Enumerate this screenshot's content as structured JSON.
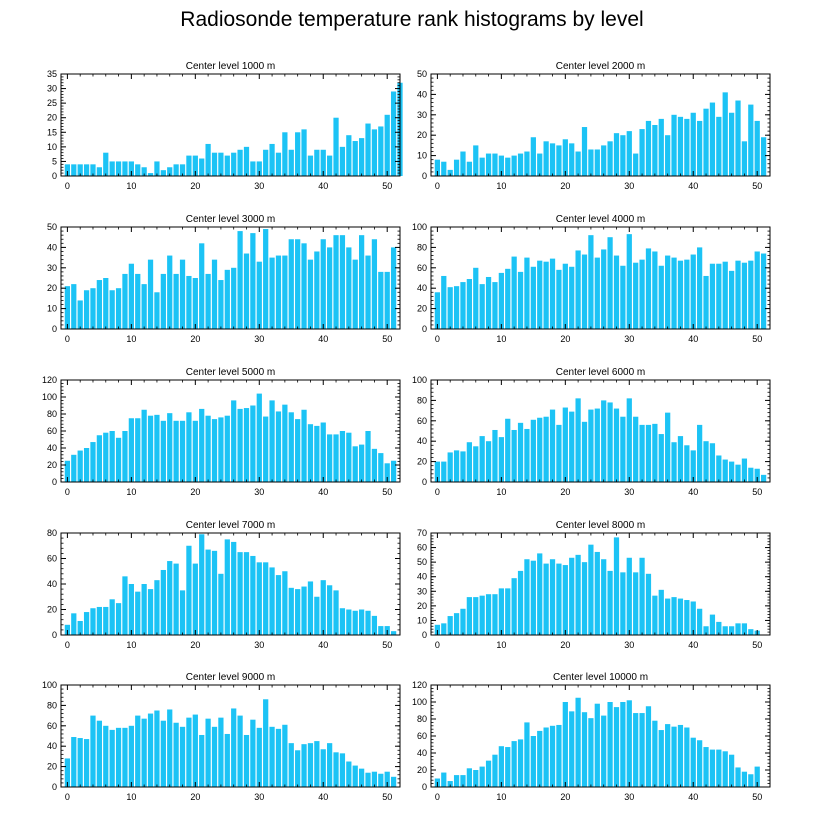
{
  "title": "Radiosonde temperature rank histograms by level",
  "bar_color": "#1cc3f5",
  "chart_data": [
    {
      "type": "bar",
      "title": "Center level 1000 m",
      "xlabel": "",
      "ylabel": "",
      "xlim": [
        -1,
        52
      ],
      "xticks": [
        0,
        10,
        20,
        30,
        40,
        50
      ],
      "ylim": [
        0,
        35
      ],
      "yticks": [
        0,
        5,
        10,
        15,
        20,
        25,
        30,
        35
      ],
      "values": [
        4,
        4,
        4,
        4,
        4,
        3,
        8,
        5,
        5,
        5,
        5,
        4,
        3,
        1,
        5,
        2,
        3,
        4,
        4,
        7,
        7,
        6,
        11,
        8,
        8,
        7,
        8,
        9,
        10,
        5,
        5,
        9,
        11,
        8,
        15,
        9,
        15,
        16,
        7,
        9,
        9,
        7,
        20,
        10,
        14,
        12,
        13,
        18,
        16,
        17,
        21,
        29,
        32
      ]
    },
    {
      "type": "bar",
      "title": "Center level 2000 m",
      "xlabel": "",
      "ylabel": "",
      "xlim": [
        -1,
        52
      ],
      "xticks": [
        0,
        10,
        20,
        30,
        40,
        50
      ],
      "ylim": [
        0,
        50
      ],
      "yticks": [
        0,
        10,
        20,
        30,
        40,
        50
      ],
      "values": [
        8,
        7,
        3,
        8,
        12,
        7,
        15,
        9,
        11,
        11,
        10,
        9,
        10,
        11,
        12,
        19,
        11,
        17,
        16,
        15,
        18,
        16,
        12,
        24,
        13,
        13,
        15,
        17,
        21,
        20,
        22,
        11,
        23,
        27,
        25,
        28,
        20,
        30,
        29,
        28,
        31,
        27,
        33,
        36,
        29,
        41,
        31,
        37,
        17,
        35,
        27,
        19
      ]
    },
    {
      "type": "bar",
      "title": "Center level 3000 m",
      "xlabel": "",
      "ylabel": "",
      "xlim": [
        -1,
        52
      ],
      "xticks": [
        0,
        10,
        20,
        30,
        40,
        50
      ],
      "ylim": [
        0,
        50
      ],
      "yticks": [
        0,
        10,
        20,
        30,
        40,
        50
      ],
      "values": [
        21,
        22,
        14,
        19,
        20,
        24,
        25,
        19,
        20,
        27,
        32,
        27,
        22,
        34,
        18,
        27,
        36,
        27,
        34,
        26,
        25,
        42,
        27,
        34,
        24,
        29,
        30,
        48,
        37,
        47,
        33,
        49,
        35,
        36,
        36,
        44,
        44,
        42,
        34,
        38,
        44,
        40,
        46,
        46,
        40,
        34,
        46,
        36,
        44,
        28,
        28,
        40
      ]
    },
    {
      "type": "bar",
      "title": "Center level 4000 m",
      "xlabel": "",
      "ylabel": "",
      "xlim": [
        -1,
        52
      ],
      "xticks": [
        0,
        10,
        20,
        30,
        40,
        50
      ],
      "ylim": [
        0,
        100
      ],
      "yticks": [
        0,
        20,
        40,
        60,
        80,
        100
      ],
      "values": [
        36,
        52,
        41,
        42,
        46,
        49,
        60,
        44,
        51,
        46,
        55,
        59,
        71,
        56,
        70,
        61,
        67,
        66,
        69,
        58,
        64,
        61,
        77,
        73,
        92,
        70,
        78,
        90,
        72,
        62,
        93,
        65,
        68,
        79,
        76,
        62,
        72,
        70,
        67,
        68,
        73,
        80,
        52,
        64,
        64,
        66,
        57,
        67,
        65,
        67,
        76,
        74
      ]
    },
    {
      "type": "bar",
      "title": "Center level 5000 m",
      "xlabel": "",
      "ylabel": "",
      "xlim": [
        -1,
        52
      ],
      "xticks": [
        0,
        10,
        20,
        30,
        40,
        50
      ],
      "ylim": [
        0,
        120
      ],
      "yticks": [
        0,
        20,
        40,
        60,
        80,
        100,
        120
      ],
      "values": [
        25,
        32,
        37,
        40,
        47,
        55,
        58,
        60,
        52,
        60,
        75,
        75,
        85,
        78,
        79,
        72,
        81,
        72,
        72,
        82,
        72,
        86,
        78,
        74,
        76,
        78,
        96,
        86,
        87,
        90,
        104,
        77,
        96,
        83,
        91,
        82,
        74,
        85,
        68,
        66,
        70,
        56,
        56,
        60,
        58,
        42,
        44,
        60,
        39,
        34,
        22,
        25
      ]
    },
    {
      "type": "bar",
      "title": "Center level 6000 m",
      "xlabel": "",
      "ylabel": "",
      "xlim": [
        -1,
        52
      ],
      "xticks": [
        0,
        10,
        20,
        30,
        40,
        50
      ],
      "ylim": [
        0,
        100
      ],
      "yticks": [
        0,
        20,
        40,
        60,
        80,
        100
      ],
      "values": [
        20,
        20,
        29,
        31,
        30,
        39,
        35,
        45,
        40,
        51,
        44,
        62,
        51,
        58,
        52,
        61,
        63,
        64,
        71,
        56,
        73,
        69,
        82,
        59,
        71,
        72,
        80,
        78,
        72,
        64,
        82,
        64,
        56,
        56,
        57,
        47,
        68,
        39,
        45,
        36,
        31,
        56,
        40,
        38,
        26,
        22,
        20,
        17,
        23,
        14,
        13,
        7
      ]
    },
    {
      "type": "bar",
      "title": "Center level 7000 m",
      "xlabel": "",
      "ylabel": "",
      "xlim": [
        -1,
        52
      ],
      "xticks": [
        0,
        10,
        20,
        30,
        40,
        50
      ],
      "ylim": [
        0,
        80
      ],
      "yticks": [
        0,
        20,
        40,
        60,
        80
      ],
      "values": [
        8,
        17,
        11,
        18,
        21,
        22,
        22,
        28,
        25,
        46,
        40,
        34,
        40,
        36,
        43,
        51,
        58,
        56,
        35,
        70,
        56,
        79,
        67,
        66,
        48,
        75,
        73,
        65,
        65,
        62,
        57,
        57,
        53,
        47,
        50,
        37,
        36,
        38,
        42,
        30,
        43,
        39,
        35,
        21,
        20,
        19,
        20,
        19,
        15,
        7,
        7,
        3
      ]
    },
    {
      "type": "bar",
      "title": "Center level 8000 m",
      "xlabel": "",
      "ylabel": "",
      "xlim": [
        -1,
        52
      ],
      "xticks": [
        0,
        10,
        20,
        30,
        40,
        50
      ],
      "ylim": [
        0,
        70
      ],
      "yticks": [
        0,
        10,
        20,
        30,
        40,
        50,
        60,
        70
      ],
      "values": [
        7,
        8,
        13,
        15,
        18,
        26,
        26,
        27,
        28,
        28,
        32,
        32,
        39,
        44,
        52,
        51,
        56,
        49,
        52,
        49,
        48,
        53,
        55,
        50,
        62,
        57,
        52,
        44,
        67,
        43,
        53,
        43,
        53,
        42,
        27,
        31,
        25,
        26,
        25,
        24,
        23,
        18,
        6,
        14,
        9,
        6,
        6,
        8,
        8,
        4,
        3
      ]
    },
    {
      "type": "bar",
      "title": "Center level 9000 m",
      "xlabel": "",
      "ylabel": "",
      "xlim": [
        -1,
        52
      ],
      "xticks": [
        0,
        10,
        20,
        30,
        40,
        50
      ],
      "ylim": [
        0,
        100
      ],
      "yticks": [
        0,
        20,
        40,
        60,
        80,
        100
      ],
      "values": [
        28,
        49,
        48,
        47,
        70,
        65,
        60,
        56,
        58,
        58,
        60,
        70,
        67,
        72,
        75,
        65,
        76,
        63,
        59,
        68,
        71,
        51,
        67,
        59,
        68,
        52,
        77,
        70,
        51,
        66,
        58,
        86,
        59,
        57,
        61,
        43,
        36,
        42,
        43,
        45,
        37,
        43,
        34,
        33,
        25,
        21,
        18,
        14,
        15,
        13,
        15,
        10
      ]
    },
    {
      "type": "bar",
      "title": "Center level 10000 m",
      "xlabel": "",
      "ylabel": "",
      "xlim": [
        -1,
        52
      ],
      "xticks": [
        0,
        10,
        20,
        30,
        40,
        50
      ],
      "ylim": [
        0,
        120
      ],
      "yticks": [
        0,
        20,
        40,
        60,
        80,
        100,
        120
      ],
      "values": [
        10,
        17,
        7,
        14,
        14,
        22,
        20,
        24,
        31,
        38,
        48,
        47,
        54,
        56,
        76,
        60,
        66,
        70,
        72,
        73,
        100,
        89,
        105,
        88,
        81,
        98,
        84,
        100,
        94,
        100,
        102,
        87,
        87,
        95,
        78,
        67,
        74,
        71,
        73,
        70,
        58,
        55,
        47,
        44,
        44,
        42,
        38,
        23,
        18,
        15,
        24
      ]
    }
  ]
}
